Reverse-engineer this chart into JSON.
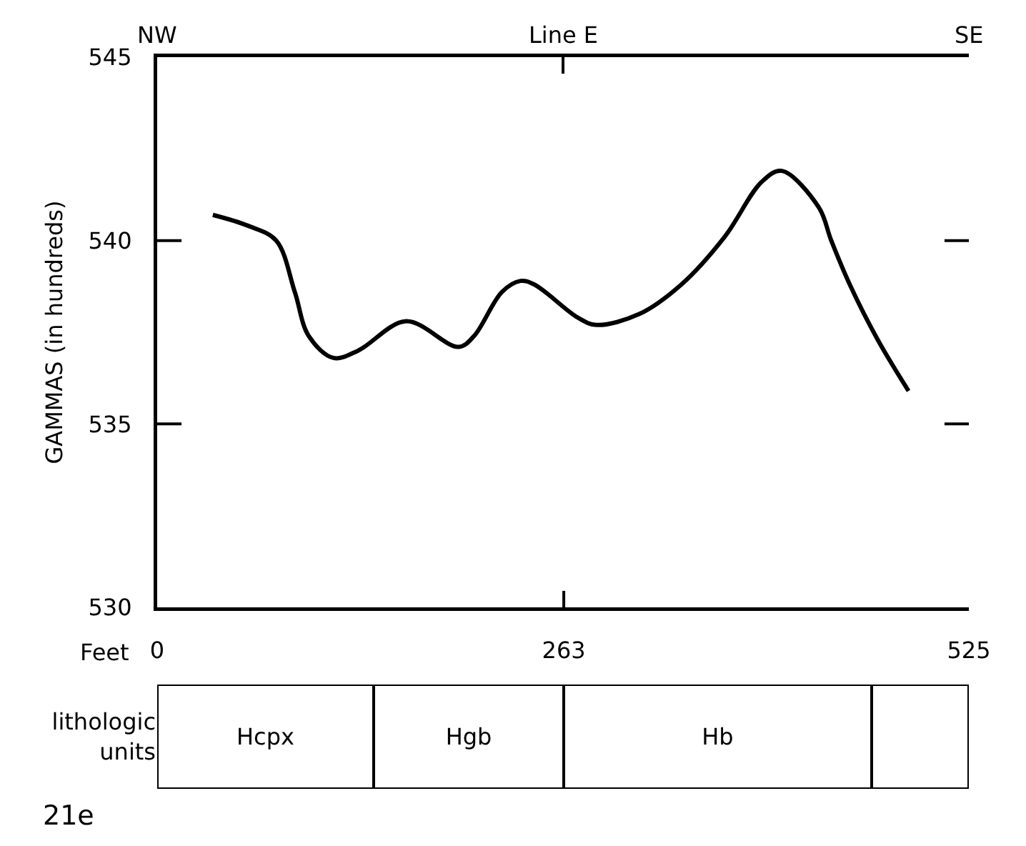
{
  "chart_data": [
    {
      "type": "line",
      "ylabel": "GAMMAS (in hundreds)",
      "xlabel": "Feet",
      "x": [
        36,
        59,
        77,
        89,
        98,
        114,
        130,
        161,
        195,
        205,
        223,
        235,
        244,
        272,
        284,
        312,
        339,
        367,
        391,
        404,
        428,
        436,
        448,
        466,
        486
      ],
      "series": [
        {
          "color": "#000000",
          "values": [
            540.7,
            540.4,
            540.0,
            538.6,
            537.4,
            536.8,
            537.0,
            537.8,
            537.1,
            537.4,
            538.6,
            538.9,
            538.8,
            537.9,
            537.7,
            538.0,
            538.8,
            540.1,
            541.6,
            541.9,
            540.9,
            540.0,
            538.8,
            537.3,
            535.9
          ]
        }
      ],
      "xlim": [
        0,
        525
      ],
      "xticks": [
        0,
        263,
        525
      ],
      "annotations": [
        "NW",
        "Line E",
        "SE"
      ],
      "ylim": [
        530,
        545
      ],
      "yticks": [
        530,
        535,
        540,
        545
      ]
    },
    {
      "type": "bar",
      "orientation": "horizontal",
      "stacked": true,
      "categories": [
        "lithologic units"
      ],
      "series": [
        {
          "name": "Hcpx",
          "color": "#ffffff",
          "values": [
            140
          ]
        },
        {
          "name": "Hgb",
          "color": "#ffffff",
          "values": [
            123
          ]
        },
        {
          "name": "Hb",
          "color": "#ffffff",
          "values": [
            199
          ]
        },
        {
          "color": "#ffffff",
          "values": [
            63
          ]
        }
      ],
      "xlim": [
        0,
        525
      ],
      "tick_labels": "y",
      "annotations": [
        "21e"
      ]
    }
  ]
}
